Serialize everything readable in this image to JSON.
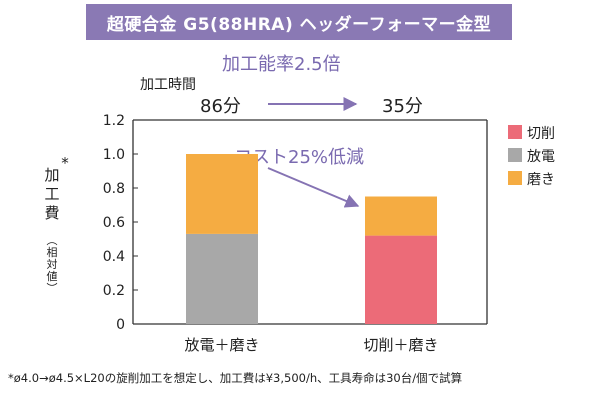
{
  "header": {
    "title": "超硬合金 G5(88HRA) ヘッダーフォーマー金型"
  },
  "speed_note": {
    "title": "加工能率2.5倍",
    "time_label": "加工時間",
    "time_before": "86分",
    "time_after": "35分"
  },
  "cost_note": "コスト25%低減",
  "footnote": "*ø4.0→ø4.5×L20の旋削加工を想定し、加工費は¥3,500/h、工具寿命は30台/個で試算",
  "colors": {
    "title_bg": "#8a79b4",
    "accent_text": "#7a6ab0",
    "arrow": "#8573b3",
    "cutting": "#ec6b78",
    "edm": "#a8a8a8",
    "polishing": "#f5ac42"
  },
  "chart_data": {
    "type": "bar",
    "stacked": true,
    "categories": [
      "放電＋磨き",
      "切削＋磨き"
    ],
    "series": [
      {
        "name": "切削",
        "color": "#ec6b78",
        "values": [
          0,
          0.52
        ]
      },
      {
        "name": "放電",
        "color": "#a8a8a8",
        "values": [
          0.53,
          0
        ]
      },
      {
        "name": "磨き",
        "color": "#f5ac42",
        "values": [
          0.47,
          0.23
        ]
      }
    ],
    "ylabel_main": "加工費",
    "ylabel_mark": "*",
    "ylabel_sub": "(相対値)",
    "ylim": [
      0,
      1.2
    ],
    "yticks": [
      "0",
      "0.2",
      "0.4",
      "0.6",
      "0.8",
      "1.0",
      "1.2"
    ],
    "grid": false,
    "legend": "right"
  }
}
